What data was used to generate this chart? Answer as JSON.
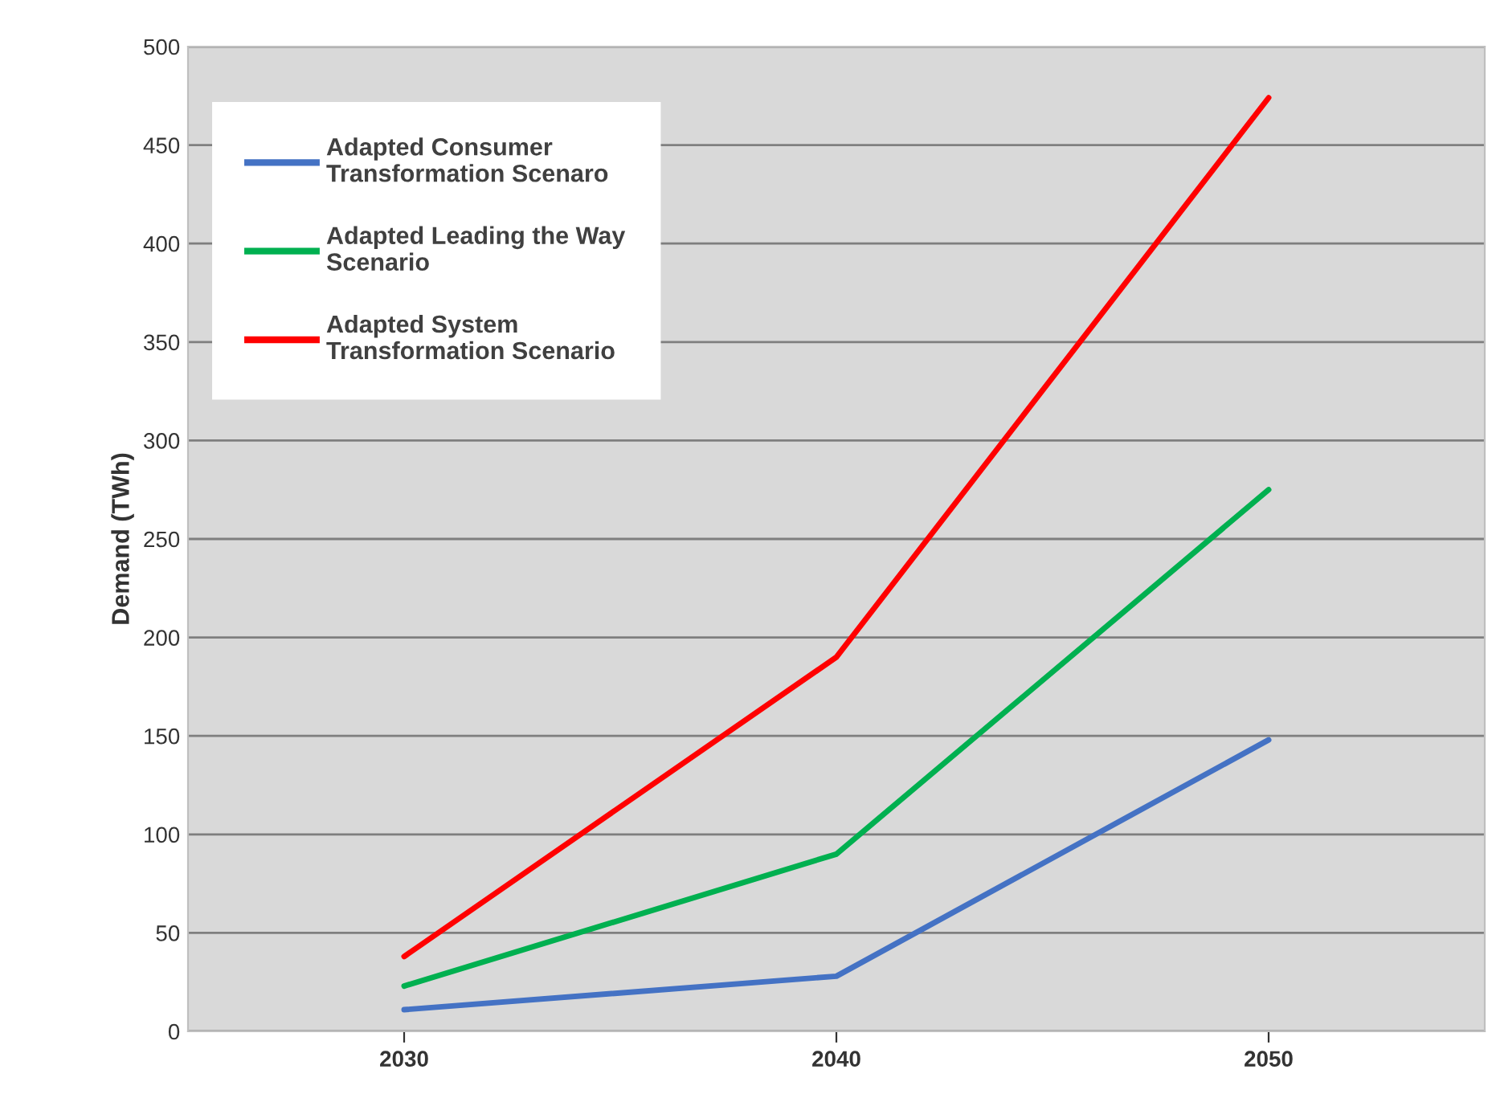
{
  "chart_data": {
    "type": "line",
    "ylabel": "Demand (TWh)",
    "x": [
      2030,
      2040,
      2050
    ],
    "xlim": [
      2025,
      2055
    ],
    "xticks": [
      2030,
      2040,
      2050
    ],
    "series": [
      {
        "name": "Adapted Consumer Transformation Scenaro",
        "color": "#4472c4",
        "values": [
          11,
          28,
          148
        ]
      },
      {
        "name": "Adapted Leading the Way Scenario",
        "color": "#00b050",
        "values": [
          23,
          90,
          275
        ]
      },
      {
        "name": "Adapted System Transformation Scenario",
        "color": "#ff0000",
        "values": [
          38,
          190,
          474
        ]
      }
    ],
    "ylim": [
      0,
      500
    ],
    "yticks": [
      0,
      50,
      100,
      150,
      200,
      250,
      300,
      350,
      400,
      450,
      500
    ],
    "grid": "y",
    "legend": "top left",
    "marker": "none",
    "line_style": "solid"
  }
}
